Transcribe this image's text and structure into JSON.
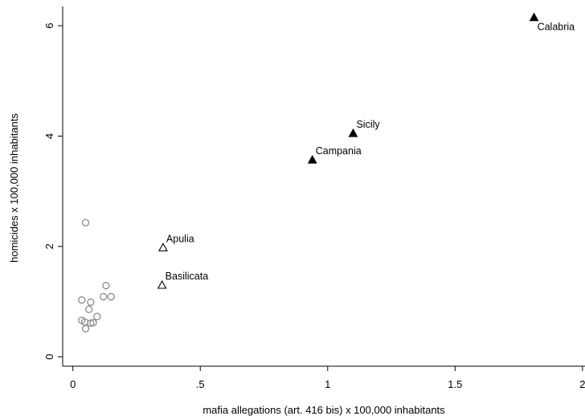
{
  "chart_data": {
    "type": "scatter",
    "x_label": "mafia allegations (art. 416 bis) x 100,000 inhabitants",
    "y_label": "homicides x 100,000 inhabitants",
    "xlim": [
      -0.04,
      2.01
    ],
    "ylim": [
      -0.17,
      6.35
    ],
    "xticks": [
      0,
      {
        "value": 0.5,
        "label": ".5"
      },
      1,
      1.5,
      2
    ],
    "yticks": [
      0,
      2,
      4,
      6
    ],
    "series": [
      {
        "marker": "filled-triangle",
        "color": "#000000",
        "x": [
          1.81,
          1.1,
          0.94
        ],
        "values": [
          6.15,
          4.05,
          3.57
        ],
        "labels": [
          "Calabria",
          "Sicily",
          "Campania"
        ]
      },
      {
        "marker": "hollow-triangle",
        "color": "#000000",
        "x": [
          0.354,
          0.35
        ],
        "values": [
          1.98,
          1.3
        ],
        "labels": [
          "Apulia",
          "Basilicata"
        ]
      },
      {
        "marker": "hollow-circle",
        "color": "#8c8c8c",
        "x": [
          0.05,
          0.035,
          0.07,
          0.13,
          0.12,
          0.15,
          0.063,
          0.095,
          0.035,
          0.047,
          0.07,
          0.08,
          0.05
        ],
        "values": [
          2.43,
          1.03,
          0.99,
          1.29,
          1.09,
          1.09,
          0.86,
          0.73,
          0.66,
          0.63,
          0.61,
          0.62,
          0.51
        ]
      }
    ]
  }
}
